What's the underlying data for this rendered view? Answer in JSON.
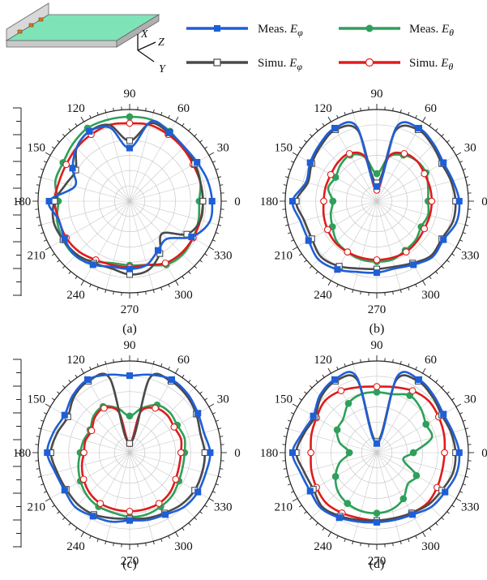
{
  "legend": [
    {
      "label": "Meas. ",
      "sym": "E",
      "sub": "φ",
      "color": "#1f5fd6",
      "marker": "square-filled"
    },
    {
      "label": "Meas. ",
      "sym": "E",
      "sub": "θ",
      "color": "#2ea05a",
      "marker": "circle-filled"
    },
    {
      "label": "Simu. ",
      "sym": "E",
      "sub": "φ",
      "color": "#4a4a4a",
      "marker": "square-open"
    },
    {
      "label": "Simu. ",
      "sym": "E",
      "sub": "θ",
      "color": "#e01b1b",
      "marker": "circle-open"
    }
  ],
  "inset": {
    "axes": [
      "X",
      "Z",
      "Y"
    ],
    "board_color": "#7fe3b8"
  },
  "chart_data": [
    {
      "type": "polar",
      "panel": "(a)",
      "angular_ticks": [
        "0",
        "30",
        "60",
        "90",
        "120",
        "150",
        "180",
        "210",
        "240",
        "270",
        "300",
        "330"
      ],
      "radial_grid_rings": 6,
      "theta_deg": [
        0,
        15,
        30,
        45,
        60,
        75,
        90,
        105,
        120,
        135,
        150,
        165,
        180,
        195,
        210,
        225,
        240,
        255,
        270,
        285,
        300,
        315,
        330,
        345
      ],
      "series": [
        {
          "name": "Meas. Eφ",
          "r": [
            0.9,
            0.88,
            0.85,
            0.84,
            0.87,
            0.9,
            0.58,
            0.83,
            0.88,
            0.82,
            0.72,
            0.62,
            0.88,
            0.8,
            0.82,
            0.84,
            0.8,
            0.74,
            0.74,
            0.72,
            0.62,
            0.58,
            0.78,
            0.9
          ]
        },
        {
          "name": "Simu. Eφ",
          "r": [
            0.8,
            0.8,
            0.82,
            0.84,
            0.86,
            0.88,
            0.66,
            0.86,
            0.88,
            0.82,
            0.68,
            0.72,
            0.82,
            0.86,
            0.84,
            0.82,
            0.78,
            0.76,
            0.8,
            0.78,
            0.66,
            0.5,
            0.72,
            0.8
          ]
        },
        {
          "name": "Meas. Eθ",
          "r": [
            0.76,
            0.8,
            0.82,
            0.82,
            0.88,
            0.92,
            0.92,
            0.92,
            0.92,
            0.88,
            0.84,
            0.84,
            0.78,
            0.82,
            0.84,
            0.84,
            0.76,
            0.7,
            0.7,
            0.72,
            0.8,
            0.82,
            0.8,
            0.78
          ]
        },
        {
          "name": "Simu. Eθ",
          "r": [
            0.8,
            0.8,
            0.8,
            0.82,
            0.84,
            0.86,
            0.85,
            0.86,
            0.84,
            0.82,
            0.8,
            0.8,
            0.82,
            0.8,
            0.8,
            0.78,
            0.74,
            0.72,
            0.72,
            0.72,
            0.78,
            0.8,
            0.8,
            0.8
          ]
        }
      ]
    },
    {
      "type": "polar",
      "panel": "(b)",
      "angular_ticks": [
        "0",
        "30",
        "60",
        "90",
        "120",
        "150",
        "180",
        "210",
        "240",
        "270",
        "300",
        "330"
      ],
      "radial_grid_rings": 6,
      "theta_deg": [
        0,
        15,
        30,
        45,
        60,
        75,
        90,
        105,
        120,
        135,
        150,
        165,
        180,
        195,
        210,
        225,
        240,
        255,
        270,
        285,
        300,
        315,
        330,
        345
      ],
      "series": [
        {
          "name": "Meas. Eφ",
          "r": [
            0.9,
            0.86,
            0.84,
            0.88,
            0.92,
            0.84,
            0.16,
            0.84,
            0.92,
            0.88,
            0.84,
            0.8,
            0.92,
            0.86,
            0.86,
            0.9,
            0.86,
            0.8,
            0.78,
            0.76,
            0.8,
            0.86,
            0.84,
            0.9
          ]
        },
        {
          "name": "Simu. Eφ",
          "r": [
            0.86,
            0.84,
            0.82,
            0.86,
            0.9,
            0.8,
            0.2,
            0.8,
            0.9,
            0.86,
            0.82,
            0.78,
            0.88,
            0.82,
            0.82,
            0.86,
            0.82,
            0.76,
            0.74,
            0.74,
            0.78,
            0.84,
            0.82,
            0.86
          ]
        },
        {
          "name": "Meas. Eθ",
          "r": [
            0.56,
            0.58,
            0.62,
            0.62,
            0.58,
            0.5,
            0.3,
            0.5,
            0.58,
            0.56,
            0.52,
            0.55,
            0.48,
            0.52,
            0.56,
            0.62,
            0.64,
            0.66,
            0.66,
            0.66,
            0.62,
            0.6,
            0.56,
            0.58
          ]
        },
        {
          "name": "Simu. Eθ",
          "r": [
            0.6,
            0.6,
            0.6,
            0.62,
            0.6,
            0.5,
            0.12,
            0.5,
            0.6,
            0.6,
            0.58,
            0.58,
            0.58,
            0.6,
            0.62,
            0.64,
            0.64,
            0.64,
            0.64,
            0.64,
            0.64,
            0.62,
            0.6,
            0.6
          ]
        }
      ]
    },
    {
      "type": "polar",
      "panel": "(c)",
      "angular_ticks": [
        "0",
        "30",
        "60",
        "90",
        "120",
        "150",
        "180",
        "210",
        "240",
        "270",
        "300",
        "330"
      ],
      "radial_grid_rings": 6,
      "theta_deg": [
        0,
        15,
        30,
        45,
        60,
        75,
        90,
        105,
        120,
        135,
        150,
        165,
        180,
        195,
        210,
        225,
        240,
        255,
        270,
        285,
        300,
        315,
        330,
        345
      ],
      "series": [
        {
          "name": "Meas. Eφ",
          "r": [
            0.88,
            0.84,
            0.86,
            0.9,
            0.92,
            0.88,
            0.84,
            0.88,
            0.92,
            0.88,
            0.82,
            0.86,
            0.9,
            0.84,
            0.82,
            0.84,
            0.8,
            0.78,
            0.74,
            0.76,
            0.78,
            0.84,
            0.86,
            0.86
          ]
        },
        {
          "name": "Simu. Eφ",
          "r": [
            0.82,
            0.8,
            0.84,
            0.88,
            0.9,
            0.84,
            0.1,
            0.84,
            0.9,
            0.86,
            0.78,
            0.82,
            0.86,
            0.82,
            0.8,
            0.8,
            0.78,
            0.74,
            0.72,
            0.74,
            0.76,
            0.8,
            0.82,
            0.82
          ]
        },
        {
          "name": "Meas. Eθ",
          "r": [
            0.6,
            0.62,
            0.6,
            0.62,
            0.6,
            0.5,
            0.4,
            0.5,
            0.58,
            0.56,
            0.5,
            0.52,
            0.54,
            0.58,
            0.62,
            0.66,
            0.68,
            0.68,
            0.7,
            0.7,
            0.68,
            0.66,
            0.62,
            0.6
          ]
        },
        {
          "name": "Simu. Eθ",
          "r": [
            0.56,
            0.58,
            0.56,
            0.58,
            0.56,
            0.46,
            0.1,
            0.46,
            0.56,
            0.54,
            0.48,
            0.5,
            0.5,
            0.54,
            0.58,
            0.62,
            0.64,
            0.64,
            0.64,
            0.64,
            0.64,
            0.62,
            0.58,
            0.56
          ]
        }
      ]
    },
    {
      "type": "polar",
      "panel": "(d)",
      "angular_ticks": [
        "0",
        "30",
        "60",
        "90",
        "120",
        "150",
        "180",
        "210",
        "240",
        "270",
        "300",
        "330"
      ],
      "radial_grid_rings": 6,
      "theta_deg": [
        0,
        15,
        30,
        45,
        60,
        75,
        90,
        105,
        120,
        135,
        150,
        165,
        180,
        195,
        210,
        225,
        240,
        255,
        270,
        285,
        300,
        315,
        330,
        345
      ],
      "series": [
        {
          "name": "Meas. Eφ",
          "r": [
            0.9,
            0.86,
            0.84,
            0.88,
            0.92,
            0.86,
            0.1,
            0.86,
            0.92,
            0.88,
            0.8,
            0.84,
            0.92,
            0.86,
            0.84,
            0.86,
            0.82,
            0.78,
            0.76,
            0.76,
            0.78,
            0.84,
            0.86,
            0.9
          ]
        },
        {
          "name": "Simu. Eφ",
          "r": [
            0.86,
            0.84,
            0.82,
            0.86,
            0.9,
            0.82,
            0.12,
            0.82,
            0.9,
            0.86,
            0.78,
            0.82,
            0.88,
            0.82,
            0.8,
            0.84,
            0.8,
            0.76,
            0.74,
            0.74,
            0.76,
            0.8,
            0.82,
            0.86
          ]
        },
        {
          "name": "Meas. Eθ",
          "r": [
            0.4,
            0.62,
            0.62,
            0.68,
            0.72,
            0.66,
            0.66,
            0.66,
            0.62,
            0.52,
            0.5,
            0.42,
            0.3,
            0.42,
            0.52,
            0.6,
            0.64,
            0.66,
            0.66,
            0.64,
            0.58,
            0.48,
            0.5,
            0.3
          ]
        },
        {
          "name": "Simu. Eθ",
          "r": [
            0.74,
            0.76,
            0.78,
            0.8,
            0.78,
            0.74,
            0.72,
            0.74,
            0.78,
            0.8,
            0.76,
            0.74,
            0.72,
            0.74,
            0.76,
            0.78,
            0.76,
            0.74,
            0.74,
            0.74,
            0.76,
            0.78,
            0.76,
            0.74
          ]
        }
      ]
    }
  ]
}
